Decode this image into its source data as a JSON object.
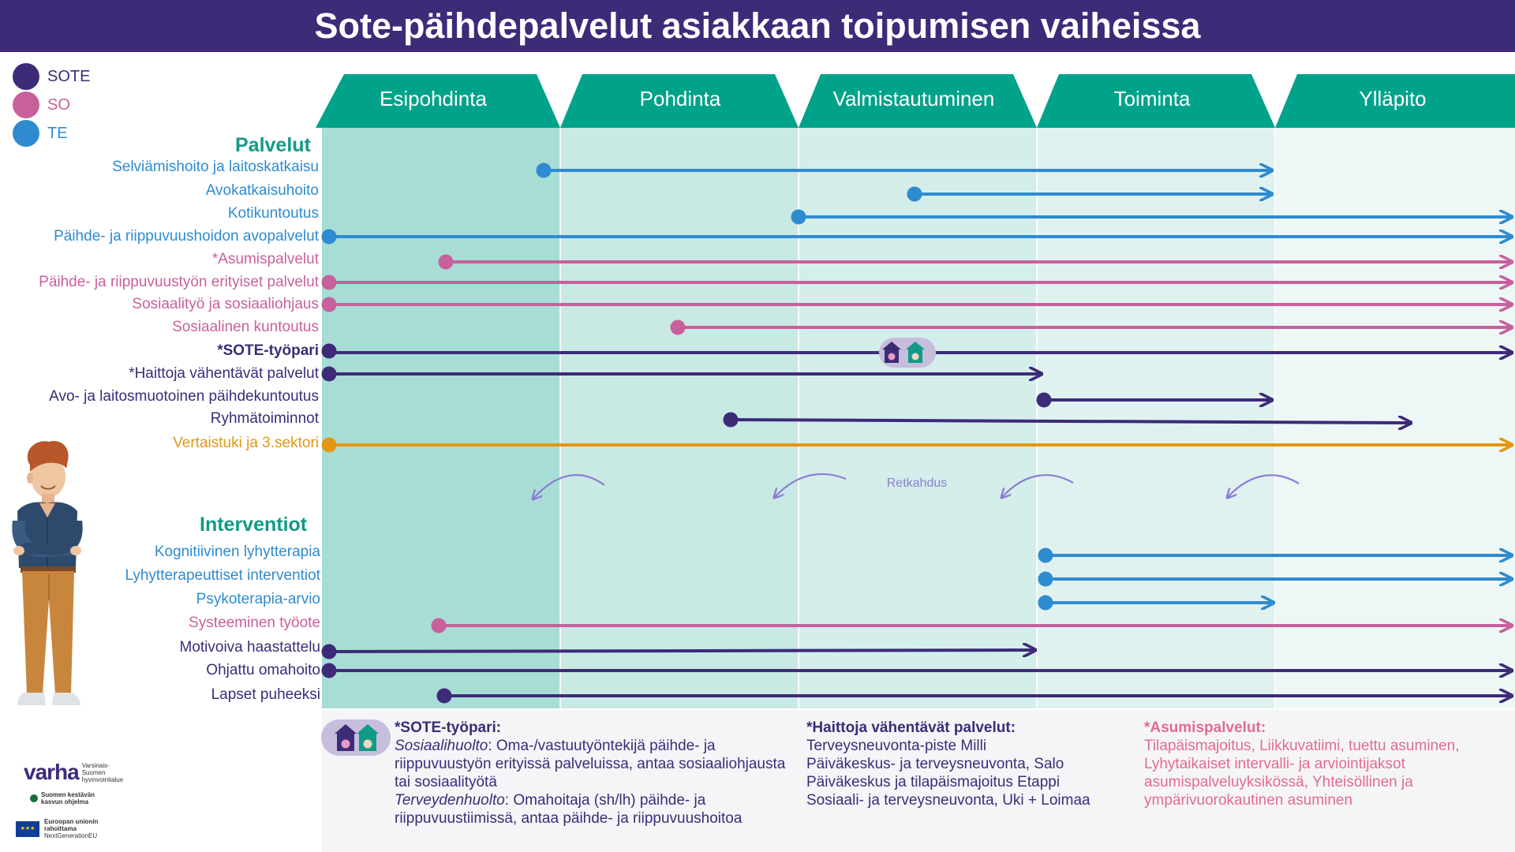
{
  "title": "Sote-päihdepalvelut asiakkaan toipumisen vaiheissa",
  "legend": [
    {
      "label": "SOTE",
      "color": "#3d2b78"
    },
    {
      "label": "SO",
      "color": "#c8609c"
    },
    {
      "label": "TE",
      "color": "#2e8bd0"
    }
  ],
  "stages": [
    "Esipohdinta",
    "Pohdinta",
    "Valmistautuminen",
    "Toiminta",
    "Ylläpito"
  ],
  "sections": {
    "services": "Palvelut",
    "interventions": "Interventiot"
  },
  "services": [
    {
      "label": "Selviämishoito ja laitoskatkaisu",
      "group": "TE",
      "bold": false
    },
    {
      "label": "Avokatkaisuhoito",
      "group": "TE",
      "bold": false
    },
    {
      "label": "Kotikuntoutus",
      "group": "TE",
      "bold": false
    },
    {
      "label": "Päihde- ja riippuvuushoidon avopalvelut",
      "group": "TE",
      "bold": false
    },
    {
      "label": "*Asumispalvelut",
      "group": "SO",
      "bold": false
    },
    {
      "label": "Päihde- ja riippuvuustyön erityiset palvelut",
      "group": "SO",
      "bold": false
    },
    {
      "label": "Sosiaalityö ja sosiaaliohjaus",
      "group": "SO",
      "bold": false
    },
    {
      "label": "Sosiaalinen kuntoutus",
      "group": "SO",
      "bold": false
    },
    {
      "label": "*SOTE-työpari",
      "group": "SOTE",
      "bold": true
    },
    {
      "label": "*Haittoja vähentävät palvelut",
      "group": "SOTE",
      "bold": false
    },
    {
      "label": "Avo- ja laitosmuotoinen päihdekuntoutus",
      "group": "SOTE",
      "bold": false
    },
    {
      "label": "Ryhmätoiminnot",
      "group": "SOTE",
      "bold": false
    },
    {
      "label": "Vertaistuki ja 3.sektori",
      "group": "OTHER",
      "bold": false
    }
  ],
  "interventions": [
    {
      "label": "Kognitiivinen lyhytterapia",
      "group": "TE"
    },
    {
      "label": "Lyhytterapeuttiset interventiot",
      "group": "TE"
    },
    {
      "label": "Psykoterapia-arvio",
      "group": "TE"
    },
    {
      "label": "Systeeminen työote",
      "group": "SO"
    },
    {
      "label": "Motivoiva haastattelu",
      "group": "SOTE"
    },
    {
      "label": "Ohjattu omahoito",
      "group": "SOTE"
    },
    {
      "label": "Lapset puheeksi",
      "group": "SOTE"
    }
  ],
  "relapse_label": "Retkahdus",
  "notes": {
    "sote": {
      "head": "*SOTE-työpari:",
      "social_label": "Sosiaalihuolto",
      "social_text": ": Oma-/vastuutyöntekijä päihde- ja riippuvuustyön erityissä palveluissa, antaa sosiaaliohjausta tai sosiaalityötä",
      "health_label": "Terveydenhuolto",
      "health_text": ": Omahoitaja (sh/lh) päihde- ja riippuvuustiimissä, antaa päihde- ja riippuvuushoitoa"
    },
    "harm": {
      "head": "*Haittoja vähentävät palvelut:",
      "lines": [
        "Terveysneuvonta-piste Milli",
        "Päiväkeskus- ja terveysneuvonta, Salo",
        "Päiväkeskus ja tilapäismajoitus Etappi",
        "Sosiaali- ja terveysneuvonta, Uki + Loimaa"
      ]
    },
    "housing": {
      "head": "*Asumispalvelut:",
      "text": "Tilapäismajoitus, Liikkuvatiimi, tuettu asuminen, Lyhytaikaiset intervalli- ja arviointijaksot asumispalveluyksikössä, Yhteisöllinen ja ympärivuorokautinen asuminen"
    }
  },
  "logos": {
    "varha": "varha",
    "varha_sub": "Varsinais-Suomen hyvinvointialue",
    "growth": "Suomen kestävän kasvun ohjelma",
    "eu": "Euroopan unionin rahoittama",
    "eu_sub": "NextGenerationEU"
  },
  "icons": {
    "so_house": "house-so-icon",
    "te_house": "house-te-icon",
    "person": "person-illustration",
    "relapse_arrow": "curved-arrow-left-icon"
  },
  "colors": {
    "sote": "#3d2b78",
    "so": "#c8609c",
    "te": "#2e8bd0",
    "other": "#e39713",
    "accent": "#129a87"
  }
}
